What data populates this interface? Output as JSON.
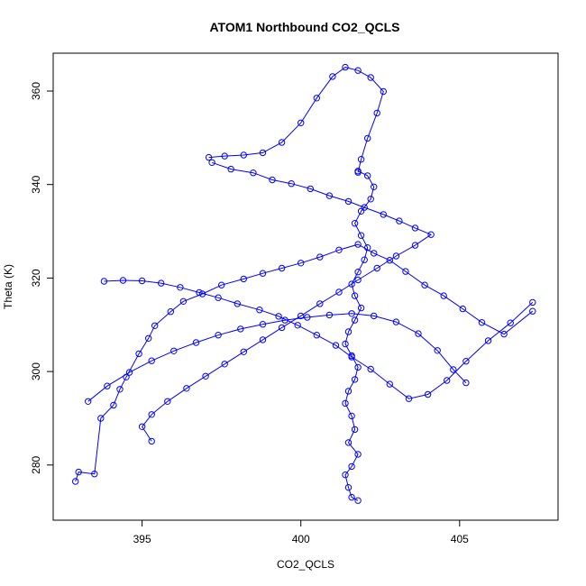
{
  "chart_data": {
    "type": "scatter",
    "title": "ATOM1 Northbound CO2_QCLS",
    "xlabel": "CO2_QCLS",
    "ylabel": "Theta (K)",
    "xlim": [
      392.2,
      408.1
    ],
    "ylim": [
      268.2,
      368.1
    ],
    "xticks": [
      395,
      400,
      405
    ],
    "yticks": [
      280,
      300,
      320,
      340,
      360
    ],
    "grid": false,
    "legend": "none",
    "marker": "open-circle",
    "connected": true,
    "color": "#0000ff",
    "series": [
      {
        "x": [
          392.9,
          393.0,
          393.5,
          393.7,
          394.1,
          394.3,
          394.5,
          394.9,
          395.2,
          395.4,
          395.9,
          396.3,
          396.9,
          397.5,
          398.2,
          398.8,
          399.4,
          400.0,
          400.6,
          401.2,
          401.8,
          402.3,
          402.8,
          403.3,
          403.9,
          404.5,
          405.1,
          405.7,
          406.4,
          407.3
        ],
        "y": [
          276.5,
          278.5,
          278.1,
          290.0,
          292.8,
          296.2,
          298.8,
          303.8,
          307.1,
          309.8,
          312.8,
          315.0,
          316.6,
          318.5,
          319.8,
          321.0,
          322.1,
          323.2,
          324.5,
          326.0,
          327.2,
          325.3,
          323.8,
          321.4,
          318.5,
          316.2,
          313.4,
          310.5,
          308.0,
          312.9
        ]
      },
      {
        "x": [
          407.3,
          406.6,
          405.9,
          405.2,
          404.6,
          404.0,
          403.4,
          402.8,
          402.2,
          401.6,
          401.1,
          400.5,
          399.9,
          399.3,
          398.7,
          398.0,
          397.4,
          396.8,
          396.2,
          395.6,
          395.0,
          394.4,
          393.8
        ],
        "y": [
          314.8,
          310.4,
          306.6,
          302.2,
          298.1,
          295.1,
          294.2,
          297.3,
          300.5,
          303.1,
          305.6,
          307.8,
          309.9,
          311.8,
          313.2,
          314.5,
          315.8,
          316.9,
          318.0,
          318.9,
          319.4,
          319.5,
          319.3
        ]
      },
      {
        "x": [
          401.8,
          401.6,
          401.5,
          401.4,
          401.6,
          401.8,
          401.5,
          401.7,
          401.6,
          401.4,
          401.5,
          401.7,
          401.8,
          401.6,
          401.4,
          401.5,
          401.7,
          401.9,
          401.7,
          401.6,
          401.8,
          402.0,
          402.1,
          401.9,
          401.7,
          401.9,
          402.2,
          402.3,
          402.1,
          401.8
        ],
        "y": [
          272.4,
          273.1,
          275.2,
          277.9,
          279.7,
          282.3,
          284.8,
          287.6,
          290.5,
          293.2,
          295.8,
          298.3,
          300.9,
          303.4,
          305.9,
          308.5,
          311.0,
          313.6,
          316.2,
          318.7,
          321.3,
          323.9,
          326.5,
          329.1,
          331.7,
          334.3,
          336.9,
          339.5,
          341.9,
          342.9
        ]
      },
      {
        "x": [
          401.8,
          401.9,
          402.1,
          402.4,
          402.6,
          402.2,
          401.8,
          401.4,
          401.0,
          400.5,
          400.0,
          399.4,
          398.8,
          398.2,
          397.6,
          397.1
        ],
        "y": [
          342.6,
          345.4,
          349.9,
          355.3,
          359.9,
          362.9,
          364.4,
          365.1,
          363.1,
          358.5,
          353.2,
          349.0,
          346.8,
          346.3,
          346.1,
          345.8
        ]
      },
      {
        "x": [
          397.2,
          397.8,
          398.5,
          399.1,
          399.7,
          400.3,
          400.9,
          401.5,
          402.0,
          402.6,
          403.1,
          403.6,
          404.1,
          403.6,
          403.0,
          402.4,
          401.8,
          401.2,
          400.6,
          400.0,
          399.4,
          398.8,
          398.2,
          397.6,
          397.0,
          396.4,
          395.8,
          395.3,
          395.0,
          395.3
        ],
        "y": [
          344.7,
          343.3,
          342.5,
          341.0,
          340.2,
          339.1,
          337.6,
          336.4,
          335.1,
          333.6,
          332.2,
          330.7,
          329.3,
          327.0,
          324.7,
          322.1,
          319.6,
          317.0,
          314.5,
          311.9,
          309.4,
          306.8,
          304.2,
          301.6,
          299.0,
          296.4,
          293.6,
          290.8,
          288.2,
          285.1
        ]
      },
      {
        "x": [
          393.3,
          393.9,
          394.6,
          395.3,
          396.0,
          396.7,
          397.4,
          398.1,
          398.8,
          399.5,
          400.2,
          400.9,
          401.6,
          402.3,
          403.0,
          403.7,
          404.3,
          404.8,
          405.2
        ],
        "y": [
          293.6,
          296.9,
          299.8,
          302.3,
          304.4,
          306.2,
          307.8,
          309.1,
          310.1,
          311.0,
          311.6,
          312.1,
          312.4,
          311.9,
          310.6,
          308.1,
          304.5,
          300.4,
          297.6
        ]
      }
    ]
  }
}
